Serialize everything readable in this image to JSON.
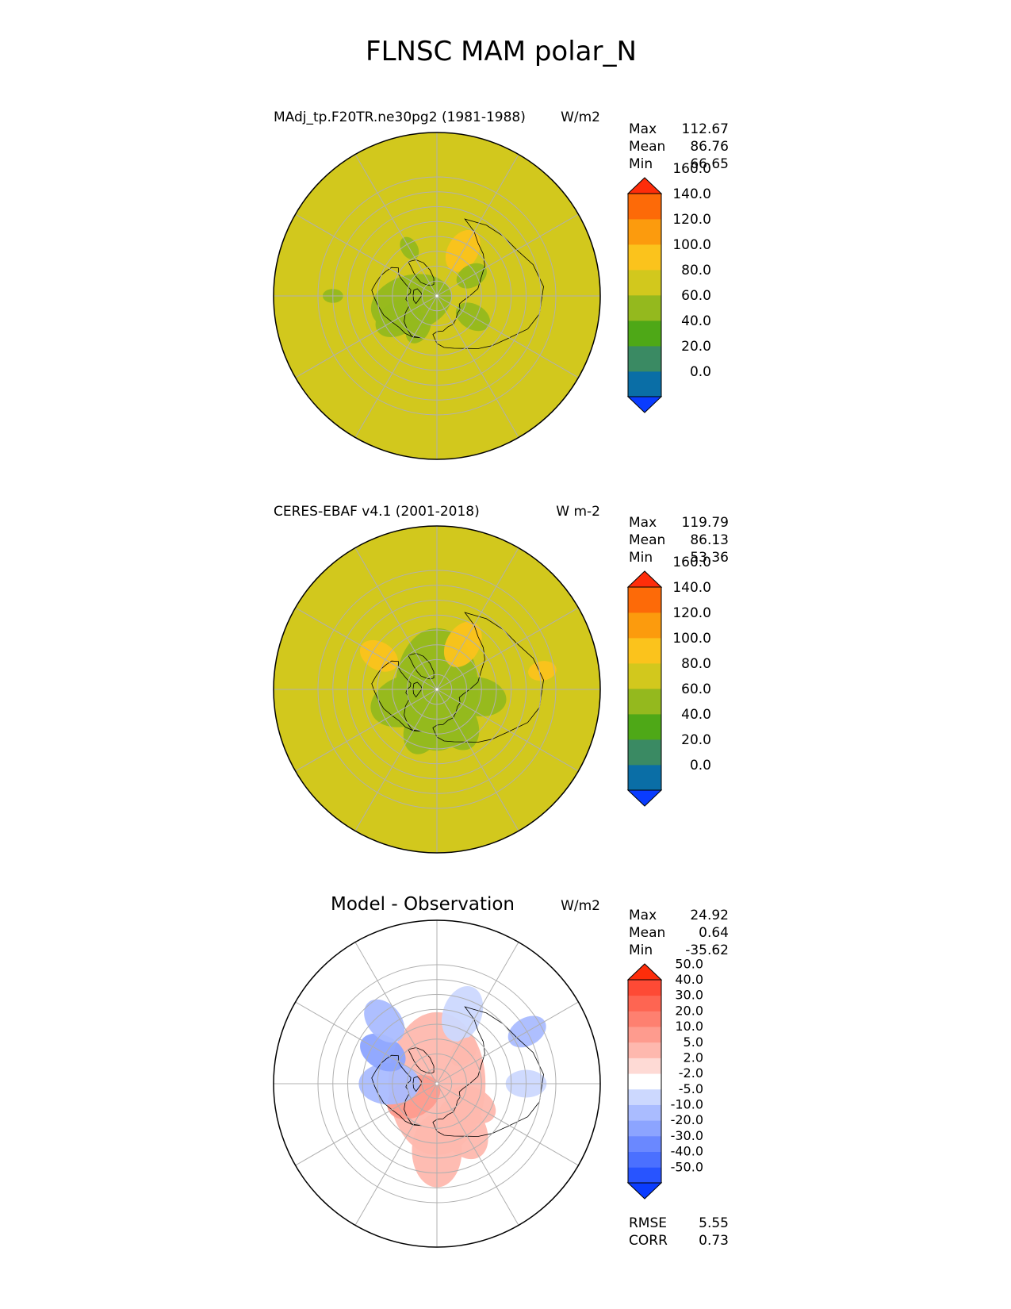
{
  "figure": {
    "title": "FLNSC MAM polar_N"
  },
  "palettes": {
    "main": [
      "#0a3cff",
      "#0a6ea6",
      "#3a8a63",
      "#4ea817",
      "#94b91e",
      "#d2c81d",
      "#fbc31c",
      "#fc9b0d",
      "#fd6a08",
      "#fe2d0a"
    ],
    "diff": [
      "#0a3cff",
      "#2854ff",
      "#4b70ff",
      "#6a88ff",
      "#8ca4ff",
      "#aabcff",
      "#ccd8fe",
      "#ffffff",
      "#fedad5",
      "#feb8ae",
      "#fe9b8e",
      "#fe8070",
      "#fe6552",
      "#fe4a35",
      "#fe2d0a"
    ],
    "land_outline": "#000000",
    "grid": "#b0b0b0"
  },
  "chart_data": [
    {
      "type": "heatmap",
      "projection": "north-polar-stereographic",
      "title_left": "MAdj_tp.F20TR.ne30pg2 (1981-1988)",
      "title_right": "W/m2",
      "stats": [
        {
          "label": "Max",
          "value": "112.67"
        },
        {
          "label": "Mean",
          "value": "86.76"
        },
        {
          "label": "Min",
          "value": "66.65"
        }
      ],
      "colorbar": {
        "levels": [
          0,
          20,
          40,
          60,
          80,
          100,
          120,
          140,
          160
        ],
        "tick_labels": [
          "0.0",
          "20.0",
          "40.0",
          "60.0",
          "80.0",
          "100.0",
          "120.0",
          "140.0",
          "160.0"
        ],
        "extend": "both"
      },
      "field": {
        "background_value": 90,
        "patches": [
          {
            "lon": 255,
            "lat": 72,
            "r": 0.2,
            "value": 70
          },
          {
            "lon": 240,
            "lat": 60,
            "r": 0.12,
            "value": 70
          },
          {
            "lon": 210,
            "lat": 65,
            "r": 0.08,
            "value": 70
          },
          {
            "lon": 30,
            "lat": 55,
            "r": 0.11,
            "value": 110
          },
          {
            "lon": 60,
            "lat": 63,
            "r": 0.08,
            "value": 70
          },
          {
            "lon": 120,
            "lat": 62,
            "r": 0.09,
            "value": 70
          },
          {
            "lon": 330,
            "lat": 53,
            "r": 0.06,
            "value": 70
          },
          {
            "lon": 270,
            "lat": 20,
            "r": 0.05,
            "value": 70
          }
        ]
      }
    },
    {
      "type": "heatmap",
      "projection": "north-polar-stereographic",
      "title_left": "CERES-EBAF v4.1 (2001-2018)",
      "title_right": "W m-2",
      "stats": [
        {
          "label": "Max",
          "value": "119.79"
        },
        {
          "label": "Mean",
          "value": "86.13"
        },
        {
          "label": "Min",
          "value": "53.36"
        }
      ],
      "colorbar": {
        "levels": [
          0,
          20,
          40,
          60,
          80,
          100,
          120,
          140,
          160
        ],
        "tick_labels": [
          "0.0",
          "20.0",
          "40.0",
          "60.0",
          "80.0",
          "100.0",
          "120.0",
          "140.0",
          "160.0"
        ],
        "extend": "both"
      },
      "field": {
        "background_value": 90,
        "patches": [
          {
            "lon": 0,
            "lat": 90,
            "r": 0.3,
            "value": 70
          },
          {
            "lon": 250,
            "lat": 68,
            "r": 0.18,
            "value": 70
          },
          {
            "lon": 150,
            "lat": 65,
            "r": 0.15,
            "value": 70
          },
          {
            "lon": 100,
            "lat": 62,
            "r": 0.14,
            "value": 70
          },
          {
            "lon": 200,
            "lat": 62,
            "r": 0.13,
            "value": 70
          },
          {
            "lon": 30,
            "lat": 55,
            "r": 0.12,
            "value": 110
          },
          {
            "lon": 300,
            "lat": 45,
            "r": 0.1,
            "value": 110
          },
          {
            "lon": 80,
            "lat": 18,
            "r": 0.07,
            "value": 110
          }
        ]
      }
    },
    {
      "type": "heatmap",
      "projection": "north-polar-stereographic",
      "title_left": "",
      "title_center": "Model - Observation",
      "title_right": "W/m2",
      "stats": [
        {
          "label": "Max",
          "value": "24.92"
        },
        {
          "label": "Mean",
          "value": "0.64"
        },
        {
          "label": "Min",
          "value": "-35.62"
        }
      ],
      "extra_stats": [
        {
          "label": "RMSE",
          "value": "5.55"
        },
        {
          "label": "CORR",
          "value": "0.73"
        }
      ],
      "colorbar": {
        "levels": [
          -50,
          -40,
          -30,
          -20,
          -10,
          -5,
          -2,
          2,
          5,
          10,
          20,
          30,
          40,
          50
        ],
        "tick_labels": [
          "-50.0",
          "-40.0",
          "-30.0",
          "-20.0",
          "-10.0",
          "-5.0",
          "-2.0",
          "2.0",
          "5.0",
          "10.0",
          "20.0",
          "30.0",
          "40.0",
          "50.0"
        ],
        "extend": "both"
      },
      "field": {
        "background_value": 0,
        "patches": [
          {
            "lon": 0,
            "lat": 90,
            "r": 0.35,
            "value": 8
          },
          {
            "lon": 240,
            "lat": 72,
            "r": 0.14,
            "value": 15
          },
          {
            "lon": 150,
            "lat": 55,
            "r": 0.16,
            "value": 7
          },
          {
            "lon": 180,
            "lat": 45,
            "r": 0.18,
            "value": 6
          },
          {
            "lon": 120,
            "lat": 62,
            "r": 0.12,
            "value": 7
          },
          {
            "lon": 270,
            "lat": 58,
            "r": 0.15,
            "value": -8
          },
          {
            "lon": 300,
            "lat": 48,
            "r": 0.12,
            "value": -12
          },
          {
            "lon": 320,
            "lat": 35,
            "r": 0.12,
            "value": -6
          },
          {
            "lon": 20,
            "lat": 40,
            "r": 0.14,
            "value": -4
          },
          {
            "lon": 60,
            "lat": 20,
            "r": 0.1,
            "value": -7
          },
          {
            "lon": 90,
            "lat": 30,
            "r": 0.1,
            "value": -4
          },
          {
            "lon": 40,
            "lat": 62,
            "r": 0.08,
            "value": 6
          }
        ]
      }
    }
  ]
}
